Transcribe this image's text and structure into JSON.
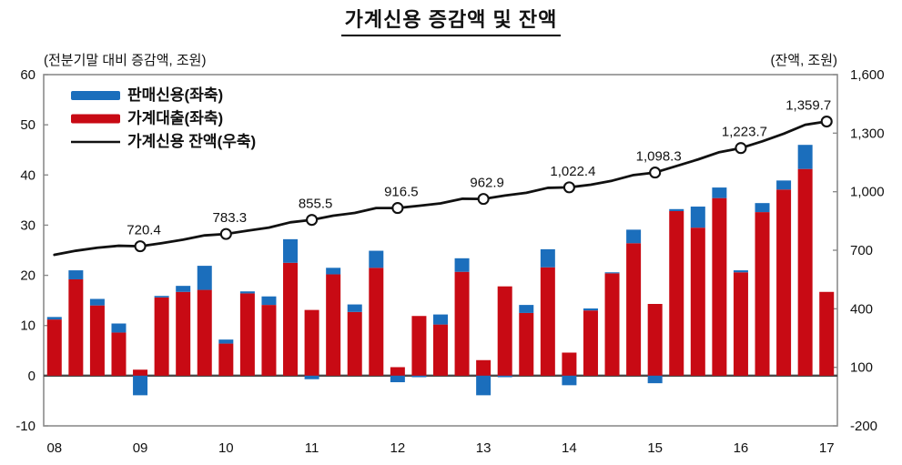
{
  "title": "가계신용 증감액 및 잔액",
  "left_axis_caption": "(전분기말 대비 증감액, 조원)",
  "right_axis_caption": "(잔액, 조원)",
  "legend": [
    {
      "label": "판매신용(좌축)",
      "color": "#1B6EBC",
      "type": "bar"
    },
    {
      "label": "가계대출(좌축)",
      "color": "#C80A14",
      "type": "bar"
    },
    {
      "label": "가계신용 잔액(우축)",
      "color": "#111111",
      "type": "line"
    }
  ],
  "chart_data": {
    "type": "bar",
    "subtype": "stacked-bar-with-line",
    "title": "가계신용 증감액 및 잔액",
    "categories": [
      "08Q1",
      "08Q2",
      "08Q3",
      "08Q4",
      "09Q1",
      "09Q2",
      "09Q3",
      "09Q4",
      "10Q1",
      "10Q2",
      "10Q3",
      "10Q4",
      "11Q1",
      "11Q2",
      "11Q3",
      "11Q4",
      "12Q1",
      "12Q2",
      "12Q3",
      "12Q4",
      "13Q1",
      "13Q2",
      "13Q3",
      "13Q4",
      "14Q1",
      "14Q2",
      "14Q3",
      "14Q4",
      "15Q1",
      "15Q2",
      "15Q3",
      "15Q4",
      "16Q1",
      "16Q2",
      "16Q3",
      "16Q4",
      "17Q1"
    ],
    "x_tick_labels": [
      "08",
      "09",
      "10",
      "11",
      "12",
      "13",
      "14",
      "15",
      "16",
      "17"
    ],
    "left_axis": {
      "label": "(전분기말 대비 증감액, 조원)",
      "range": [
        -10,
        60
      ],
      "ticks": [
        "60",
        "50",
        "40",
        "30",
        "20",
        "10",
        "0",
        "-10"
      ]
    },
    "right_axis": {
      "label": "(잔액, 조원)",
      "range": [
        -200,
        1600
      ],
      "ticks": [
        "1,600",
        "1,300",
        "1,000",
        "700",
        "400",
        "100",
        "-200"
      ]
    },
    "series": [
      {
        "name": "판매신용(좌축)",
        "type": "bar",
        "axis": "left",
        "color": "#1B6EBC",
        "values": [
          0.5,
          1.8,
          1.3,
          1.8,
          -3.9,
          0.3,
          1.2,
          4.8,
          0.8,
          0.4,
          1.7,
          4.7,
          -0.7,
          1.3,
          1.5,
          3.4,
          -1.3,
          -0.3,
          2.0,
          2.7,
          -3.9,
          -0.3,
          1.6,
          3.6,
          -1.9,
          0.4,
          0.2,
          2.7,
          -1.5,
          0.4,
          4.2,
          2.1,
          0.4,
          1.8,
          1.8,
          4.8,
          0.0
        ]
      },
      {
        "name": "가계대출(좌축)",
        "type": "bar",
        "axis": "left",
        "color": "#C80A14",
        "values": [
          11.2,
          19.2,
          14.0,
          8.6,
          1.2,
          15.6,
          16.7,
          17.1,
          6.4,
          16.4,
          14.1,
          22.5,
          13.1,
          20.2,
          12.7,
          21.5,
          1.7,
          11.9,
          10.2,
          20.7,
          3.1,
          17.8,
          12.5,
          21.6,
          4.6,
          13.0,
          20.4,
          26.4,
          14.3,
          32.8,
          29.5,
          35.4,
          20.6,
          32.6,
          37.1,
          41.2,
          16.7
        ]
      },
      {
        "name": "가계신용 잔액(우축)",
        "type": "line",
        "axis": "right",
        "color": "#111111",
        "values": [
          676.4,
          697.4,
          712.7,
          723.1,
          720.4,
          736.3,
          754.2,
          776.1,
          783.3,
          800.1,
          815.9,
          843.1,
          855.5,
          877.0,
          891.2,
          916.1,
          916.5,
          928.1,
          940.3,
          963.7,
          962.9,
          980.4,
          994.5,
          1019.7,
          1022.4,
          1035.8,
          1056.4,
          1085.5,
          1098.3,
          1131.5,
          1165.2,
          1202.7,
          1223.7,
          1258.1,
          1297.0,
          1343.0,
          1359.7
        ]
      }
    ],
    "annotations": [
      {
        "index": 4,
        "text": "720.4"
      },
      {
        "index": 8,
        "text": "783.3"
      },
      {
        "index": 12,
        "text": "855.5"
      },
      {
        "index": 16,
        "text": "916.5"
      },
      {
        "index": 20,
        "text": "962.9"
      },
      {
        "index": 24,
        "text": "1,022.4"
      },
      {
        "index": 28,
        "text": "1,098.3"
      },
      {
        "index": 32,
        "text": "1,223.7"
      },
      {
        "index": 36,
        "text": "1,359.7"
      }
    ],
    "legend_position": "top-left-inside",
    "grid": false,
    "marker_quarters": "Q1 of each year 2009-2017"
  }
}
